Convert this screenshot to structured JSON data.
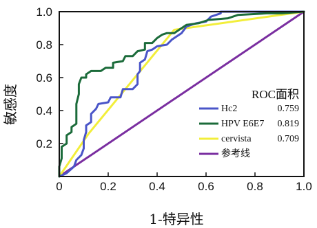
{
  "chart_data": {
    "type": "line",
    "xlabel": "1-特异性",
    "ylabel": "敏感度",
    "xlim": [
      0,
      1
    ],
    "ylim": [
      0,
      1
    ],
    "x_ticks": [
      "0",
      "0.2",
      "0.4",
      "0.6",
      "0.8",
      "1.0"
    ],
    "y_ticks": [
      "0.2",
      "0.4",
      "0.6",
      "0.8",
      "1.0"
    ],
    "grid": false,
    "legend_position": "bottom-right",
    "legend_title": "ROC面积",
    "series": [
      {
        "name": "Hc2",
        "auc": "0.759",
        "color": "#4a55c8",
        "points": [
          [
            0,
            0
          ],
          [
            0.03,
            0.02
          ],
          [
            0.06,
            0.06
          ],
          [
            0.07,
            0.1
          ],
          [
            0.09,
            0.13
          ],
          [
            0.1,
            0.17
          ],
          [
            0.1,
            0.22
          ],
          [
            0.11,
            0.27
          ],
          [
            0.11,
            0.31
          ],
          [
            0.13,
            0.33
          ],
          [
            0.13,
            0.38
          ],
          [
            0.15,
            0.41
          ],
          [
            0.16,
            0.44
          ],
          [
            0.2,
            0.45
          ],
          [
            0.21,
            0.48
          ],
          [
            0.25,
            0.48
          ],
          [
            0.26,
            0.53
          ],
          [
            0.3,
            0.53
          ],
          [
            0.32,
            0.56
          ],
          [
            0.32,
            0.62
          ],
          [
            0.33,
            0.64
          ],
          [
            0.33,
            0.69
          ],
          [
            0.35,
            0.71
          ],
          [
            0.36,
            0.76
          ],
          [
            0.38,
            0.77
          ],
          [
            0.4,
            0.79
          ],
          [
            0.44,
            0.8
          ],
          [
            0.46,
            0.83
          ],
          [
            0.5,
            0.87
          ],
          [
            0.52,
            0.91
          ],
          [
            0.56,
            0.93
          ],
          [
            0.6,
            0.94
          ],
          [
            0.62,
            0.97
          ],
          [
            0.66,
            0.99
          ],
          [
            0.66,
            1.0
          ],
          [
            1.0,
            1.0
          ]
        ]
      },
      {
        "name": "HPV E6E7",
        "auc": "0.819",
        "color": "#1b6b3a",
        "points": [
          [
            0,
            0
          ],
          [
            0,
            0.06
          ],
          [
            0.01,
            0.11
          ],
          [
            0.01,
            0.18
          ],
          [
            0.03,
            0.2
          ],
          [
            0.03,
            0.25
          ],
          [
            0.05,
            0.27
          ],
          [
            0.05,
            0.3
          ],
          [
            0.07,
            0.32
          ],
          [
            0.07,
            0.44
          ],
          [
            0.08,
            0.5
          ],
          [
            0.08,
            0.56
          ],
          [
            0.09,
            0.6
          ],
          [
            0.11,
            0.6
          ],
          [
            0.11,
            0.62
          ],
          [
            0.13,
            0.64
          ],
          [
            0.17,
            0.64
          ],
          [
            0.19,
            0.66
          ],
          [
            0.22,
            0.66
          ],
          [
            0.22,
            0.69
          ],
          [
            0.26,
            0.7
          ],
          [
            0.27,
            0.73
          ],
          [
            0.3,
            0.73
          ],
          [
            0.32,
            0.76
          ],
          [
            0.35,
            0.77
          ],
          [
            0.35,
            0.81
          ],
          [
            0.38,
            0.81
          ],
          [
            0.4,
            0.84
          ],
          [
            0.42,
            0.86
          ],
          [
            0.44,
            0.87
          ],
          [
            0.47,
            0.87
          ],
          [
            0.49,
            0.89
          ],
          [
            0.52,
            0.92
          ],
          [
            0.57,
            0.93
          ],
          [
            0.61,
            0.95
          ],
          [
            0.69,
            0.96
          ],
          [
            0.73,
            0.98
          ],
          [
            0.85,
            0.99
          ],
          [
            0.91,
            0.99
          ],
          [
            1.0,
            1.0
          ]
        ]
      },
      {
        "name": "cervista",
        "auc": "0.709",
        "color": "#f2ee3a",
        "points": [
          [
            0,
            0
          ],
          [
            0.12,
            0.26
          ],
          [
            0.47,
            0.89
          ],
          [
            1.0,
            1.0
          ]
        ]
      },
      {
        "name": "参考线",
        "auc": "",
        "color": "#7a2ea0",
        "points": [
          [
            0,
            0
          ],
          [
            1.0,
            1.0
          ]
        ]
      }
    ]
  }
}
